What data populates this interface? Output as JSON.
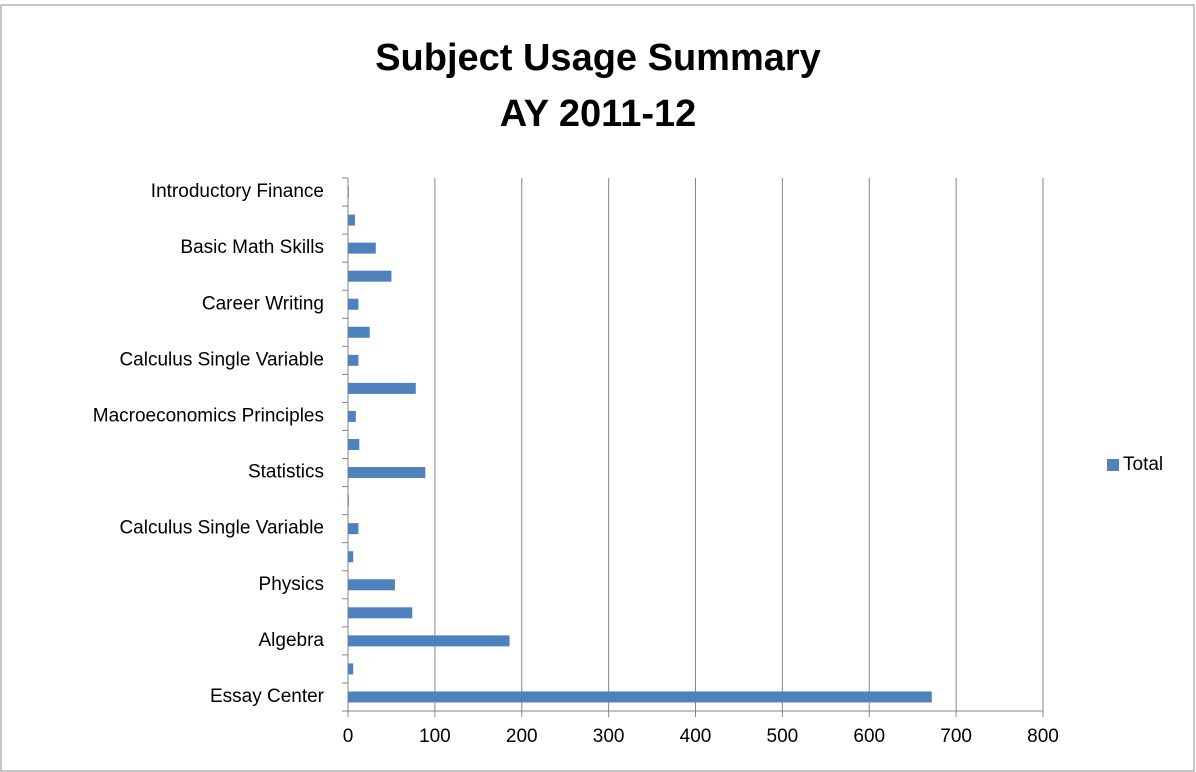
{
  "chart_data": {
    "type": "barh",
    "title": "Subject Usage Summary",
    "subtitle": "AY 2011-12",
    "categories": [
      "Essay Center",
      null,
      "Algebra",
      null,
      "Physics",
      null,
      "Calculus Single Variable",
      null,
      "Statistics",
      null,
      "Macroeconomics Principles",
      null,
      "Calculus Single Variable",
      null,
      "Career Writing",
      null,
      "Basic Math Skills",
      null,
      "Introductory Finance"
    ],
    "series": [
      {
        "name": "Total",
        "color": "#4f81bd",
        "values": [
          672,
          6,
          186,
          74,
          54,
          6,
          12,
          1,
          89,
          13,
          9,
          78,
          12,
          25,
          12,
          50,
          32,
          8,
          1
        ]
      }
    ],
    "xlim": [
      0,
      800
    ],
    "xticks": [
      0,
      100,
      200,
      300,
      400,
      500,
      600,
      700,
      800
    ],
    "grid": true,
    "legend": "right"
  }
}
